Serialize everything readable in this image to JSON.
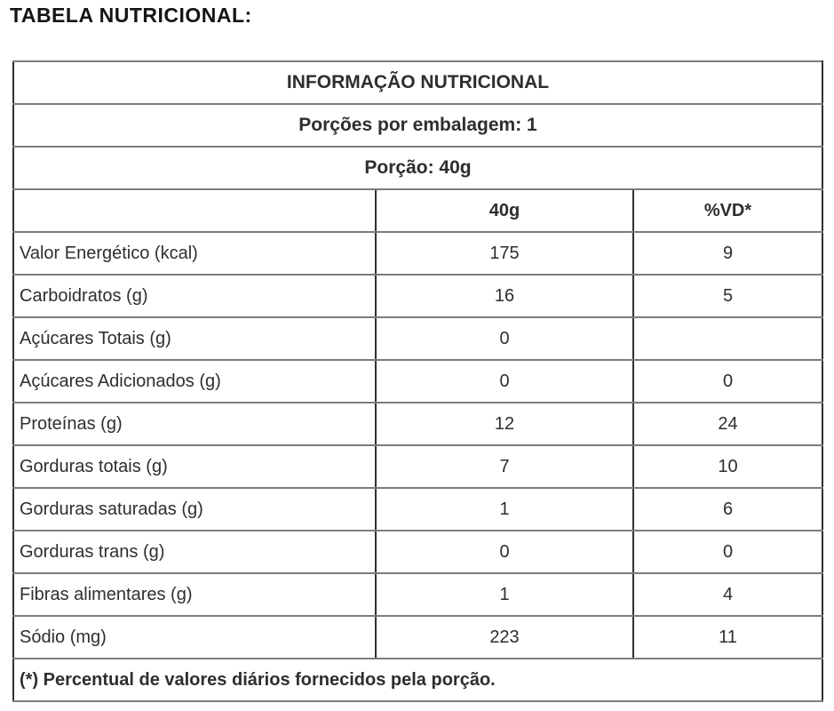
{
  "page_title": "TABELA NUTRICIONAL:",
  "table": {
    "title": "INFORMAÇÃO NUTRICIONAL",
    "servings_line": "Porções por embalagem: 1",
    "portion_line": "Porção: 40g",
    "columns": {
      "label": "",
      "amount": "40g",
      "dv": "%VD*"
    },
    "rows": [
      {
        "label": "Valor Energético (kcal)",
        "amount": "175",
        "dv": "9",
        "indent": 0
      },
      {
        "label": "Carboidratos (g)",
        "amount": "16",
        "dv": "5",
        "indent": 0
      },
      {
        "label": "Açúcares Totais (g)",
        "amount": "0",
        "dv": "",
        "indent": 1
      },
      {
        "label": "Açúcares Adicionados (g)",
        "amount": "0",
        "dv": "0",
        "indent": 2
      },
      {
        "label": "Proteínas (g)",
        "amount": "12",
        "dv": "24",
        "indent": 0
      },
      {
        "label": "Gorduras totais (g)",
        "amount": "7",
        "dv": "10",
        "indent": 0
      },
      {
        "label": "Gorduras saturadas (g)",
        "amount": "1",
        "dv": "6",
        "indent": 1
      },
      {
        "label": "Gorduras trans (g)",
        "amount": "0",
        "dv": "0",
        "indent": 1
      },
      {
        "label": "Fibras alimentares (g)",
        "amount": "1",
        "dv": "4",
        "indent": 0
      },
      {
        "label": "Sódio (mg)",
        "amount": "223",
        "dv": "11",
        "indent": 0
      }
    ],
    "footnote": "(*) Percentual de valores diários fornecidos pela porção."
  },
  "colors": {
    "horizontal_rule": "#7c7c7c",
    "vertical_rule": "#303030",
    "text": "#2e2e2e",
    "title_text": "#141414",
    "background": "#ffffff"
  }
}
